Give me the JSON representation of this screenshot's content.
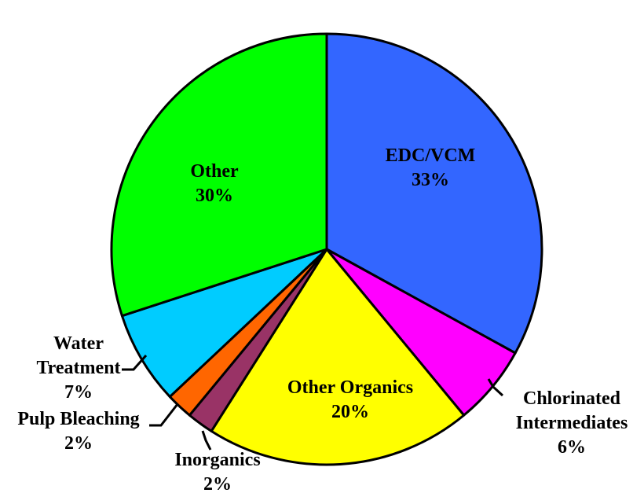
{
  "chart_data": {
    "type": "pie",
    "categories": [
      "EDC/VCM",
      "Chlorinated Intermediates",
      "Other Organics",
      "Inorganics",
      "Pulp Bleaching",
      "Water Treatment",
      "Other"
    ],
    "values": [
      33,
      6,
      20,
      2,
      2,
      7,
      30
    ],
    "value_labels": [
      "33%",
      "6%",
      "20%",
      "2%",
      "2%",
      "7%",
      "30%"
    ],
    "colors": [
      "#3366ff",
      "#ff00ff",
      "#ffff00",
      "#993366",
      "#ff6600",
      "#00ccff",
      "#00ff00"
    ]
  }
}
